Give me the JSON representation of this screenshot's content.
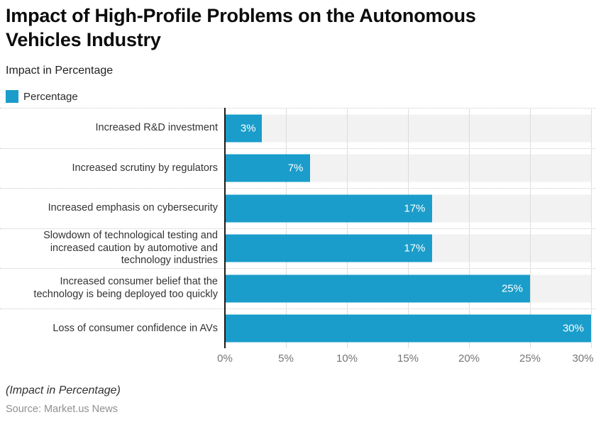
{
  "header": {
    "title": "Impact of High-Profile Problems on the Autonomous Vehicles Industry",
    "subtitle": "Impact in Percentage"
  },
  "legend": {
    "items": [
      {
        "label": "Percentage",
        "color": "#1a9dca"
      }
    ]
  },
  "chart_data": {
    "type": "bar",
    "orientation": "horizontal",
    "title": "Impact of High-Profile Problems on the Autonomous Vehicles Industry",
    "subtitle": "Impact in Percentage",
    "categories": [
      "Increased R&D investment",
      "Increased scrutiny by regulators",
      "Increased emphasis on cybersecurity",
      "Slowdown of technological testing and increased caution by automotive and technology industries",
      "Increased consumer belief that the technology is being deployed too quickly",
      "Loss of consumer confidence in AVs"
    ],
    "series": [
      {
        "name": "Percentage",
        "values": [
          3,
          7,
          17,
          17,
          25,
          30
        ]
      }
    ],
    "value_labels": [
      "3%",
      "7%",
      "17%",
      "17%",
      "25%",
      "30%"
    ],
    "x_ticks": [
      "0%",
      "5%",
      "10%",
      "15%",
      "20%",
      "25%",
      "30%"
    ],
    "xlim": [
      0,
      30
    ],
    "xlabel": "",
    "ylabel": "",
    "grid": true,
    "legend_position": "top-left",
    "bar_color": "#1a9dca",
    "track_color": "#f2f2f2",
    "value_label_color": "#ffffff"
  },
  "footer": {
    "note": "(Impact in Percentage)",
    "source": "Source: Market.us News"
  }
}
